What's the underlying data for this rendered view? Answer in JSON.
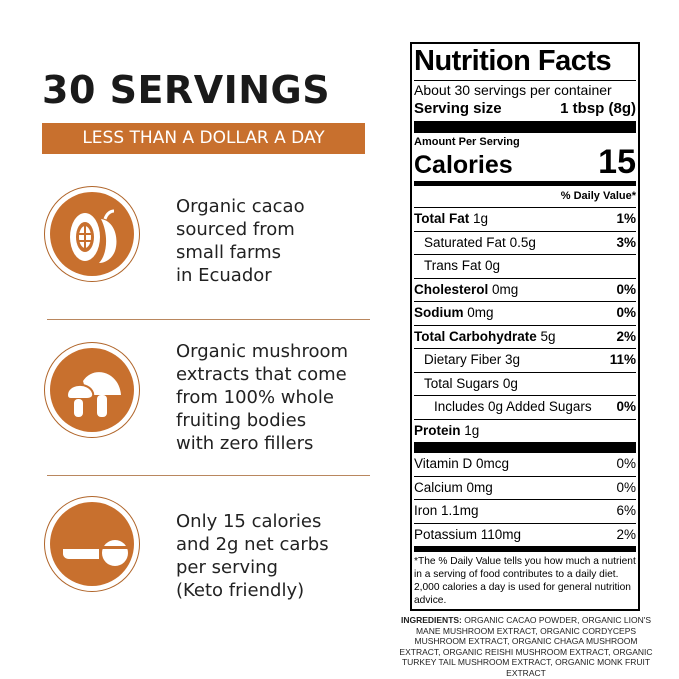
{
  "headline": "30 SERVINGS",
  "banner": "LESS THAN A DOLLAR A DAY",
  "brand_color": "#c8702e",
  "features": [
    {
      "icon": "cacao-pod-icon",
      "lines": [
        "Organic cacao",
        "sourced from",
        "small farms",
        "in Ecuador"
      ]
    },
    {
      "icon": "mushroom-icon",
      "lines": [
        "Organic mushroom",
        "extracts that come",
        "from 100% whole",
        "fruiting bodies",
        "with zero fillers"
      ]
    },
    {
      "icon": "measuring-spoon-icon",
      "lines": [
        "Only 15 calories",
        "and 2g net carbs",
        "per serving",
        "(Keto friendly)"
      ]
    }
  ],
  "nutrition": {
    "title": "Nutrition Facts",
    "servings": "About 30 servings per container",
    "serving_size_label": "Serving size",
    "serving_size_value": "1 tbsp (8g)",
    "amount_per_serving": "Amount Per Serving",
    "calories_label": "Calories",
    "calories_value": "15",
    "dv_header": "% Daily Value*",
    "rows": [
      {
        "label": "Total Fat",
        "amount": "1g",
        "dv": "1%"
      },
      {
        "label": "Saturated Fat",
        "amount": "0.5g",
        "dv": "3%"
      },
      {
        "label": "Trans Fat",
        "amount": "0g",
        "dv": ""
      },
      {
        "label": "Cholesterol",
        "amount": "0mg",
        "dv": "0%"
      },
      {
        "label": "Sodium",
        "amount": "0mg",
        "dv": "0%"
      },
      {
        "label": "Total Carbohydrate",
        "amount": "5g",
        "dv": "2%"
      },
      {
        "label": "Dietary Fiber",
        "amount": "3g",
        "dv": "11%"
      },
      {
        "label": "Total Sugars",
        "amount": "0g",
        "dv": ""
      },
      {
        "label": "Includes 0g Added Sugars",
        "amount": "",
        "dv": "0%"
      },
      {
        "label": "Protein",
        "amount": "1g",
        "dv": ""
      }
    ],
    "vitamins": [
      {
        "label": "Vitamin D 0mcg",
        "dv": "0%"
      },
      {
        "label": "Calcium 0mg",
        "dv": "0%"
      },
      {
        "label": "Iron 1.1mg",
        "dv": "6%"
      },
      {
        "label": "Potassium 110mg",
        "dv": "2%"
      }
    ],
    "footnote": "*The % Daily Value tells you how much a nutrient in a serving of food contributes to a daily diet. 2,000 calories a day is used for general nutrition advice."
  },
  "ingredients_label": "INGREDIENTS:",
  "ingredients": "ORGANIC CACAO POWDER, ORGANIC LION'S MANE MUSHROOM EXTRACT, ORGANIC CORDYCEPS MUSHROOM EXTRACT, ORGANIC CHAGA MUSHROOM EXTRACT, ORGANIC REISHI MUSHROOM EXTRACT, ORGANIC TURKEY TAIL MUSHROOM EXTRACT, ORGANIC MONK FRUIT EXTRACT"
}
